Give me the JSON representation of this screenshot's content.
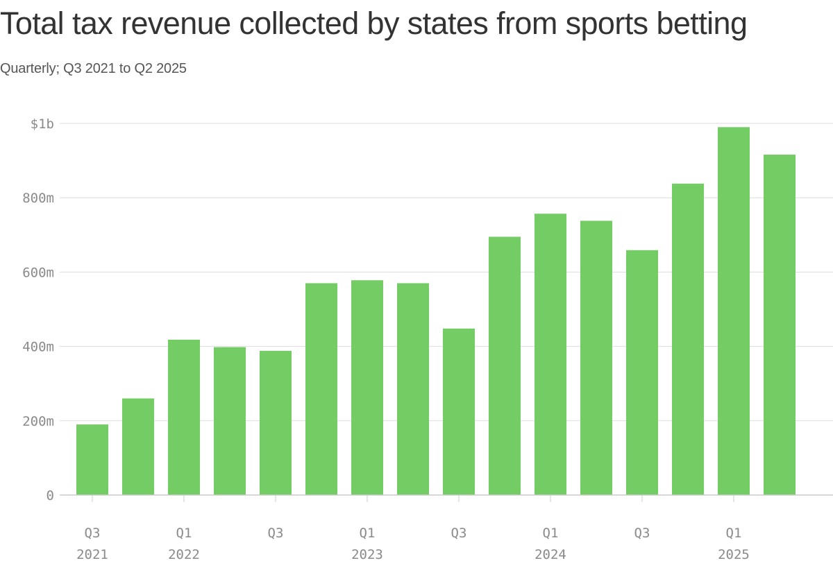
{
  "chart_data": {
    "type": "bar",
    "title": "Total tax revenue collected by states from sports betting",
    "subtitle": "Quarterly; Q3 2021 to Q2 2025",
    "xlabel": "",
    "ylabel": "",
    "ylim": [
      0,
      1000
    ],
    "unit": "millions of dollars",
    "y_ticks": [
      {
        "value": 0,
        "label": "0"
      },
      {
        "value": 200,
        "label": "200m"
      },
      {
        "value": 400,
        "label": "400m"
      },
      {
        "value": 600,
        "label": "600m"
      },
      {
        "value": 800,
        "label": "800m"
      },
      {
        "value": 1000,
        "label": "$1b"
      }
    ],
    "categories": [
      "Q3 2021",
      "Q4 2021",
      "Q1 2022",
      "Q2 2022",
      "Q3 2022",
      "Q4 2022",
      "Q1 2023",
      "Q2 2023",
      "Q3 2023",
      "Q4 2023",
      "Q1 2024",
      "Q2 2024",
      "Q3 2024",
      "Q4 2024",
      "Q1 2025",
      "Q2 2025"
    ],
    "values": [
      190,
      260,
      418,
      398,
      388,
      570,
      578,
      570,
      448,
      695,
      757,
      738,
      659,
      838,
      990,
      916
    ],
    "x_tick_labels": [
      {
        "index": 0,
        "quarter": "Q3",
        "year": "2021"
      },
      {
        "index": 2,
        "quarter": "Q1",
        "year": "2022"
      },
      {
        "index": 4,
        "quarter": "Q3",
        "year": ""
      },
      {
        "index": 6,
        "quarter": "Q1",
        "year": "2023"
      },
      {
        "index": 8,
        "quarter": "Q3",
        "year": ""
      },
      {
        "index": 10,
        "quarter": "Q1",
        "year": "2024"
      },
      {
        "index": 12,
        "quarter": "Q3",
        "year": ""
      },
      {
        "index": 14,
        "quarter": "Q1",
        "year": "2025"
      }
    ],
    "grid": true,
    "colors": {
      "bar": "#74cc65",
      "grid": "#dddddd",
      "axis": "#cccccc",
      "tick_text": "#8a8a8a"
    }
  }
}
